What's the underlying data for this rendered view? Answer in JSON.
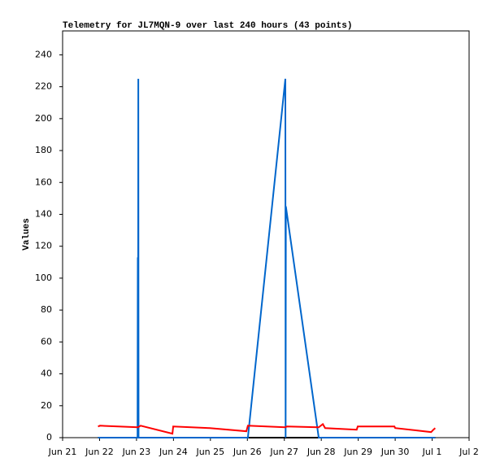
{
  "chart_data": {
    "type": "line",
    "title": "Telemetry for JL7MQN-9 over last 240 hours (43 points)",
    "y_label": "Values",
    "xlim": [
      "Jun 21",
      "Jul 2"
    ],
    "xticks": [
      "Jun 21",
      "Jun 22",
      "Jun 23",
      "Jun 24",
      "Jun 25",
      "Jun 26",
      "Jun 27",
      "Jun 28",
      "Jun 29",
      "Jun 30",
      "Jul 1",
      "Jul 2"
    ],
    "ylim": [
      0,
      255
    ],
    "yticks": [
      0,
      20,
      40,
      60,
      80,
      100,
      120,
      140,
      160,
      180,
      200,
      220,
      240
    ],
    "grid": false,
    "series": [
      {
        "color": "#000000",
        "x": [
          "Jun 21 23:00",
          "Jul 1 02:00"
        ],
        "values": [
          0,
          0
        ]
      },
      {
        "color": "#0066cc",
        "x": [
          "Jun 21 23:00",
          "Jun 23 00:40",
          "Jun 23 00:50",
          "Jun 23 01:00",
          "Jun 23 01:10",
          "Jun 23 01:20",
          "Jun 26 00:20",
          "Jun 27 00:40",
          "Jun 27 00:50",
          "Jun 27 01:00",
          "Jun 27 22:20",
          "Jul 1 02:00"
        ],
        "values": [
          0,
          0,
          113,
          0,
          225,
          0,
          0,
          225,
          0,
          145,
          0,
          0
        ]
      },
      {
        "color": "#ff0000",
        "x": [
          "Jun 21 23:00",
          "Jun 22 00:15",
          "Jun 23 01:00",
          "Jun 23 02:40",
          "Jun 23 23:20",
          "Jun 23 23:50",
          "Jun 24 23:30",
          "Jun 25 23:20",
          "Jun 26 00:20",
          "Jun 27 00:40",
          "Jun 27 01:40",
          "Jun 27 22:20",
          "Jun 28 01:00",
          "Jun 28 02:30",
          "Jun 28 23:00",
          "Jun 28 23:40",
          "Jun 29 23:30",
          "Jun 30 00:00",
          "Jun 30 23:20",
          "Jul 1 00:50",
          "Jul 1 02:00"
        ],
        "values": [
          7,
          7.5,
          6.5,
          7.5,
          2.5,
          7,
          6,
          4,
          7.5,
          6.5,
          7,
          6.5,
          8.5,
          6,
          5,
          7,
          7,
          6,
          3.5,
          5,
          6
        ]
      }
    ]
  }
}
